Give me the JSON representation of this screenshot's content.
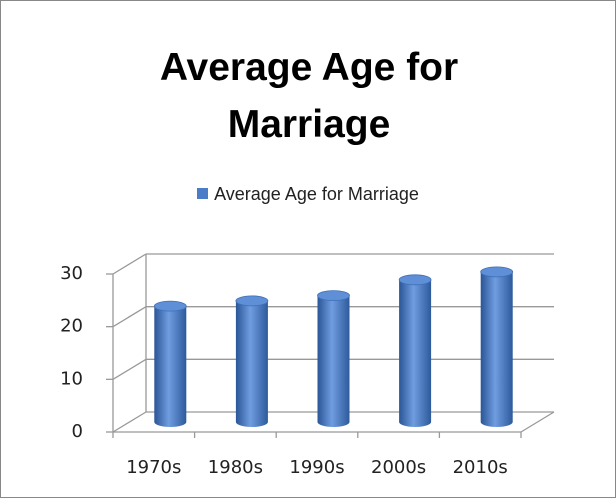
{
  "chart_data": {
    "type": "bar",
    "title": "Average Age for Marriage",
    "categories": [
      "1970s",
      "1980s",
      "1990s",
      "2000s",
      "2010s"
    ],
    "series": [
      {
        "name": "Average Age for Marriage",
        "color": "#4a7cc7",
        "values": [
          22,
          23,
          24,
          27,
          28.5
        ]
      }
    ],
    "ylim": [
      0,
      30
    ],
    "yticks": [
      0,
      10,
      20,
      30
    ],
    "grid": true,
    "legend": "top"
  }
}
